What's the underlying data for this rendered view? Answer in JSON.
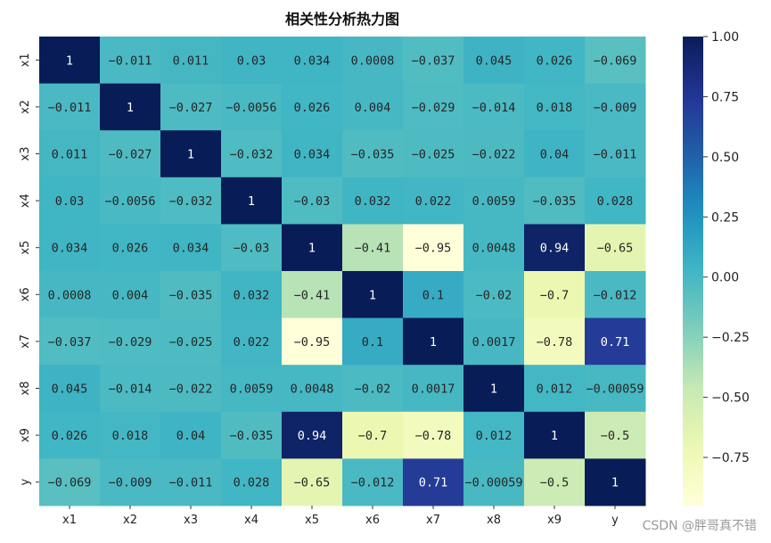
{
  "chart_data": {
    "type": "heatmap",
    "title": "相关性分析热力图",
    "xlabels": [
      "x1",
      "x2",
      "x3",
      "x4",
      "x5",
      "x6",
      "x7",
      "x8",
      "x9",
      "y"
    ],
    "ylabels": [
      "x1",
      "x2",
      "x3",
      "x4",
      "x5",
      "x6",
      "x7",
      "x8",
      "x9",
      "y"
    ],
    "values": [
      [
        1,
        -0.011,
        0.011,
        0.03,
        0.034,
        0.0008,
        -0.037,
        0.045,
        0.026,
        -0.069
      ],
      [
        -0.011,
        1,
        -0.027,
        -0.0056,
        0.026,
        0.004,
        -0.029,
        -0.014,
        0.018,
        -0.009
      ],
      [
        0.011,
        -0.027,
        1,
        -0.032,
        0.034,
        -0.035,
        -0.025,
        -0.022,
        0.04,
        -0.011
      ],
      [
        0.03,
        -0.0056,
        -0.032,
        1,
        -0.03,
        0.032,
        0.022,
        0.0059,
        -0.035,
        0.028
      ],
      [
        0.034,
        0.026,
        0.034,
        -0.03,
        1,
        -0.41,
        -0.95,
        0.0048,
        0.94,
        -0.65
      ],
      [
        0.0008,
        0.004,
        -0.035,
        0.032,
        -0.41,
        1,
        0.1,
        -0.02,
        -0.7,
        -0.012
      ],
      [
        -0.037,
        -0.029,
        -0.025,
        0.022,
        -0.95,
        0.1,
        1,
        0.0017,
        -0.78,
        0.71
      ],
      [
        0.045,
        -0.014,
        -0.022,
        0.0059,
        0.0048,
        -0.02,
        0.0017,
        1,
        0.012,
        -0.00059
      ],
      [
        0.026,
        0.018,
        0.04,
        -0.035,
        0.94,
        -0.7,
        -0.78,
        0.012,
        1,
        -0.5
      ],
      [
        -0.069,
        -0.009,
        -0.011,
        0.028,
        -0.65,
        -0.012,
        0.71,
        -0.00059,
        -0.5,
        1
      ]
    ],
    "annotations": [
      [
        "1",
        "−0.011",
        "0.011",
        "0.03",
        "0.034",
        "0.0008",
        "−0.037",
        "0.045",
        "0.026",
        "−0.069"
      ],
      [
        "−0.011",
        "1",
        "−0.027",
        "−0.0056",
        "0.026",
        "0.004",
        "−0.029",
        "−0.014",
        "0.018",
        "−0.009"
      ],
      [
        "0.011",
        "−0.027",
        "1",
        "−0.032",
        "0.034",
        "−0.035",
        "−0.025",
        "−0.022",
        "0.04",
        "−0.011"
      ],
      [
        "0.03",
        "−0.0056",
        "−0.032",
        "1",
        "−0.03",
        "0.032",
        "0.022",
        "0.0059",
        "−0.035",
        "0.028"
      ],
      [
        "0.034",
        "0.026",
        "0.034",
        "−0.03",
        "1",
        "−0.41",
        "−0.95",
        "0.0048",
        "0.94",
        "−0.65"
      ],
      [
        "0.0008",
        "0.004",
        "−0.035",
        "0.032",
        "−0.41",
        "1",
        "0.1",
        "−0.02",
        "−0.7",
        "−0.012"
      ],
      [
        "−0.037",
        "−0.029",
        "−0.025",
        "0.022",
        "−0.95",
        "0.1",
        "1",
        "0.0017",
        "−0.78",
        "0.71"
      ],
      [
        "0.045",
        "−0.014",
        "−0.022",
        "0.0059",
        "0.0048",
        "−0.02",
        "0.0017",
        "1",
        "0.012",
        "−0.00059"
      ],
      [
        "0.026",
        "0.018",
        "0.04",
        "−0.035",
        "0.94",
        "−0.7",
        "−0.78",
        "0.012",
        "1",
        "−0.5"
      ],
      [
        "−0.069",
        "−0.009",
        "−0.011",
        "0.028",
        "−0.65",
        "−0.012",
        "0.71",
        "−0.00059",
        "−0.5",
        "1"
      ]
    ],
    "colormap": "YlGnBu",
    "colorbar": {
      "vmin": -0.95,
      "vmax": 1.0,
      "ticks": [
        1.0,
        0.75,
        0.5,
        0.25,
        0.0,
        -0.25,
        -0.5,
        -0.75
      ],
      "tick_labels": [
        "1.00",
        "0.75",
        "0.50",
        "0.25",
        "0.00",
        "−0.25",
        "−0.50",
        "−0.75"
      ]
    },
    "grid": false,
    "legend": "colorbar-right"
  },
  "watermark": "CSDN @胖哥真不错"
}
